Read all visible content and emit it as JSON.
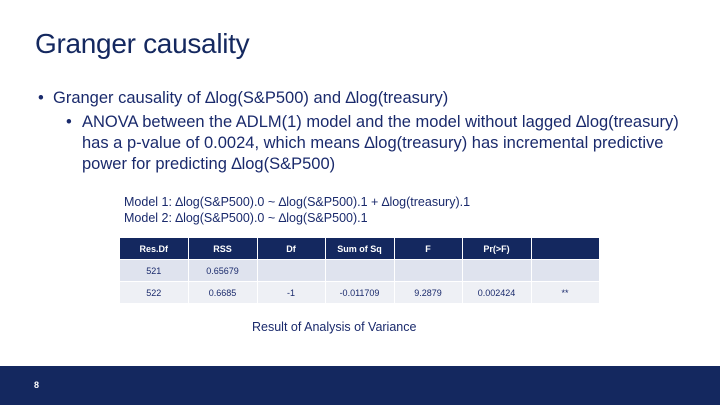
{
  "slide": {
    "title": "Granger causality",
    "bullet1": "Granger causality of ∆log(S&P500) and ∆log(treasury)",
    "bullet1_sub": "ANOVA between the ADLM(1) model and the model without lagged ∆log(treasury) has a p-value of 0.0024, which means ∆log(treasury) has incremental predictive power for predicting ∆log(S&P500)",
    "model1": "Model 1: ∆log(S&P500).0 ~ ∆log(S&P500).1 + ∆log(treasury).1",
    "model2": "Model 2: ∆log(S&P500).0 ~ ∆log(S&P500).1",
    "caption": "Result of Analysis of Variance",
    "page_number": "8",
    "bullet_char": "•"
  },
  "table": {
    "headers": [
      "Res.Df",
      "RSS",
      "Df",
      "Sum of Sq",
      "F",
      "Pr(>F)",
      ""
    ],
    "rows": [
      [
        "521",
        "0.65679",
        "",
        "",
        "",
        "",
        ""
      ],
      [
        "522",
        "0.6685",
        "-1",
        "-0.011709",
        "9.2879",
        "0.002424",
        "**"
      ]
    ]
  },
  "colors": {
    "navy": "#14285f",
    "row_light": "#dfe3ee",
    "row_lighter": "#eef0f5"
  }
}
